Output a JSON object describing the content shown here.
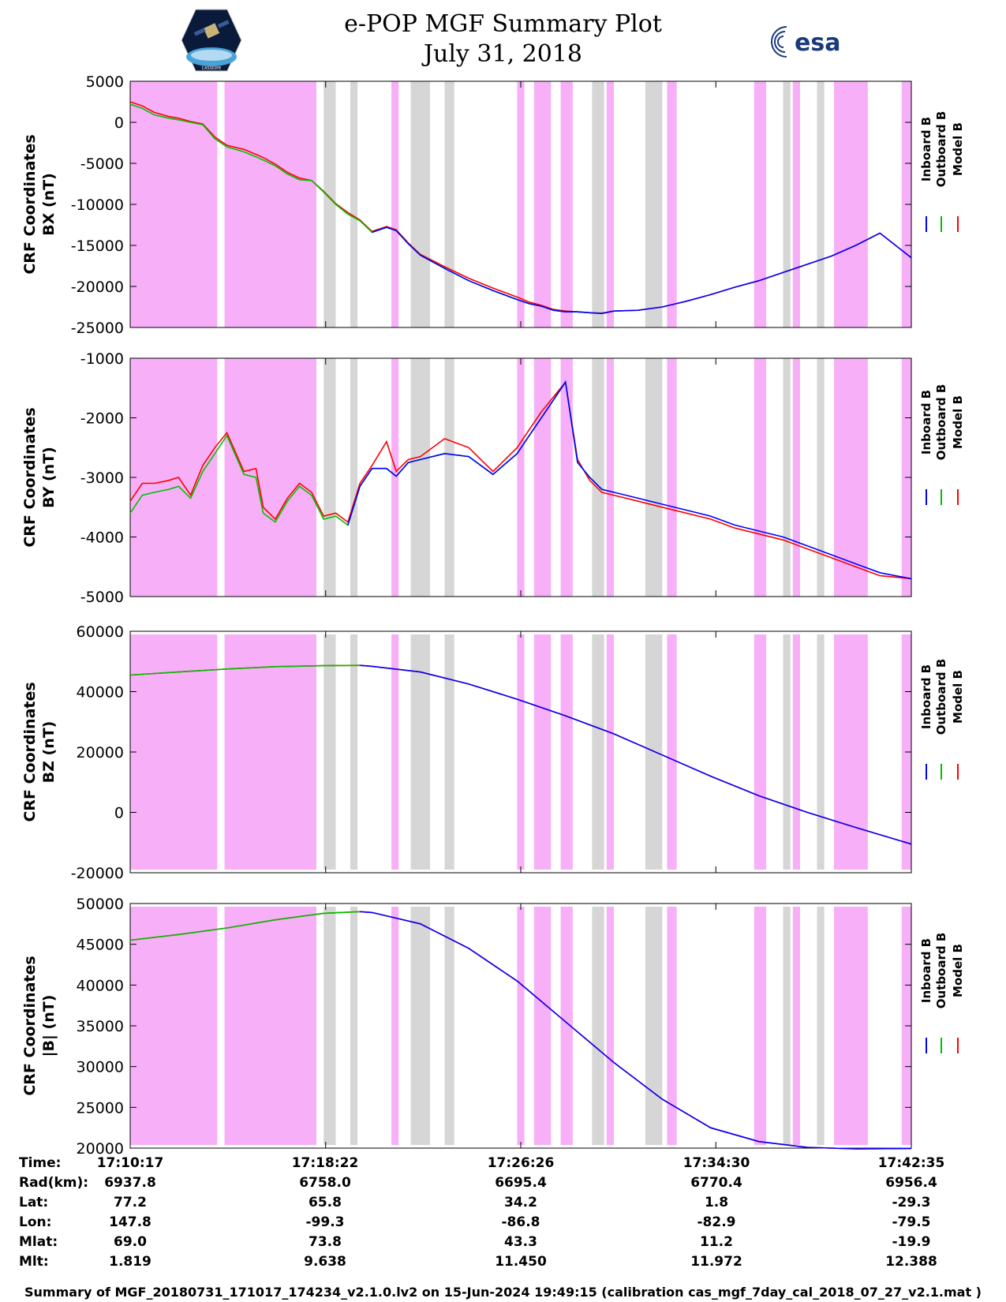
{
  "header": {
    "title": "e-POP MGF Summary Plot",
    "date": "July 31, 2018",
    "left_logo_text": "CASSIOPE",
    "right_logo_text": "esa"
  },
  "legend": {
    "items": [
      {
        "name": "Inboard B",
        "color": "#0000ff"
      },
      {
        "name": "Outboard B",
        "color": "#00c000"
      },
      {
        "name": "Model B",
        "color": "#ff0000"
      }
    ]
  },
  "colors": {
    "pink_band": "#f7b0f7",
    "gray_band": "#d6d6d6",
    "inboard": "#0000ff",
    "outboard": "#00c000",
    "model": "#ff0000"
  },
  "chart_data": [
    {
      "type": "line",
      "ylabel_line1": "CRF Coordinates",
      "ylabel_line2": "BX (nT)",
      "ylim": [
        -25000,
        5000
      ],
      "yticks": [
        "5000",
        "0",
        "-5000",
        "-10000",
        "-15000",
        "-20000",
        "-25000"
      ],
      "ytick_values": [
        5000,
        0,
        -5000,
        -10000,
        -15000,
        -20000,
        -25000
      ],
      "x": [
        0.0,
        0.5,
        1.0,
        1.6,
        2.0,
        2.5,
        3.0,
        3.5,
        4.0,
        4.7,
        5.2,
        5.5,
        6.0,
        6.5,
        7.0,
        7.5,
        8.0,
        8.5,
        9.0,
        9.5,
        10.0,
        10.6,
        11.0,
        11.5,
        12.0,
        13.0,
        14.0,
        15.0,
        16.0,
        16.5,
        17.0,
        17.5,
        18.0,
        18.5,
        19.0,
        19.5,
        20.0,
        21.0,
        22.0,
        23.0,
        24.0,
        25.0,
        26.0,
        27.0,
        28.0,
        29.0,
        30.0,
        31.0,
        32.3
      ],
      "series": [
        {
          "name": "Outboard B",
          "values": [
            2200,
            1700,
            900,
            500,
            300,
            0,
            -300,
            -2000,
            -3000,
            -3600,
            -4200,
            -4600,
            -5300,
            -6300,
            -7000,
            -7100,
            -8500,
            -10000,
            -11200,
            -12000,
            -13400,
            -12800,
            -13200,
            -14800,
            -16200,
            -17800,
            -19300,
            -20500,
            -21600,
            -22100,
            -22400,
            -22900,
            -23100,
            -23100,
            -23200,
            -23300,
            -23000,
            null,
            null,
            null,
            null,
            null,
            null,
            null,
            null,
            null,
            null,
            null,
            null
          ]
        },
        {
          "name": "Inboard B",
          "values": [
            null,
            null,
            null,
            null,
            null,
            null,
            null,
            null,
            null,
            null,
            null,
            null,
            null,
            null,
            null,
            null,
            null,
            null,
            null,
            null,
            -13400,
            -12800,
            -13200,
            -14800,
            -16200,
            -17800,
            -19300,
            -20500,
            -21600,
            -22100,
            -22400,
            -22900,
            -23100,
            -23100,
            -23200,
            -23300,
            -23000,
            -22900,
            -22500,
            -21800,
            -21000,
            -20100,
            -19300,
            -18300,
            -17300,
            -16300,
            -15000,
            -13500,
            -16500
          ]
        },
        {
          "name": "Model B",
          "values": [
            2500,
            2000,
            1200,
            700,
            500,
            100,
            -200,
            -1800,
            -2800,
            -3300,
            -3900,
            -4300,
            -5100,
            -6100,
            -6800,
            -7100,
            -8400,
            -9900,
            -11000,
            -11900,
            -13300,
            -12700,
            -13100,
            -14700,
            -16100,
            -17600,
            -19000,
            -20200,
            -21300,
            -21900,
            -22300,
            -22800,
            -23000,
            -23100,
            -23200,
            -23250,
            -23000,
            -22900,
            -22500,
            -21800,
            -21000,
            -20100,
            -19300,
            -18300,
            -17300,
            -16300,
            -15000,
            -13500,
            -16500
          ]
        }
      ]
    },
    {
      "type": "line",
      "ylabel_line1": "CRF Coordinates",
      "ylabel_line2": "BY (nT)",
      "ylim": [
        -5000,
        -1000
      ],
      "yticks": [
        "-1000",
        "-2000",
        "-3000",
        "-4000",
        "-5000"
      ],
      "ytick_values": [
        -1000,
        -2000,
        -3000,
        -4000,
        -5000
      ],
      "x": [
        0.0,
        0.5,
        1.0,
        1.6,
        2.0,
        2.5,
        3.0,
        3.5,
        4.0,
        4.7,
        5.2,
        5.5,
        6.0,
        6.5,
        7.0,
        7.5,
        8.0,
        8.5,
        9.0,
        9.5,
        10.0,
        10.6,
        11.0,
        11.5,
        12.0,
        13.0,
        14.0,
        15.0,
        16.0,
        16.5,
        17.0,
        17.5,
        18.0,
        18.5,
        19.0,
        19.5,
        20.0,
        21.0,
        22.0,
        23.0,
        24.0,
        25.0,
        26.0,
        27.0,
        28.0,
        29.0,
        30.0,
        31.0,
        32.3
      ],
      "series": [
        {
          "name": "Outboard B",
          "values": [
            -3600,
            -3300,
            -3250,
            -3200,
            -3150,
            -3350,
            -2900,
            -2600,
            -2300,
            -2950,
            -3000,
            -3600,
            -3750,
            -3400,
            -3150,
            -3300,
            -3700,
            -3650,
            -3800,
            -3150,
            -2850,
            -2850,
            -2980,
            -2750,
            -2700,
            -2600,
            -2650,
            -2950,
            -2600,
            -2300,
            -2000,
            -1700,
            -1400,
            -2750,
            -3000,
            -3200,
            -3250,
            null,
            null,
            null,
            null,
            null,
            null,
            null,
            null,
            null,
            null,
            null,
            null
          ]
        },
        {
          "name": "Inboard B",
          "values": [
            null,
            null,
            null,
            null,
            null,
            null,
            null,
            null,
            null,
            null,
            null,
            null,
            null,
            null,
            null,
            null,
            null,
            null,
            -3800,
            -3150,
            -2850,
            -2850,
            -2980,
            -2750,
            -2700,
            -2600,
            -2650,
            -2950,
            -2600,
            -2300,
            -2000,
            -1700,
            -1400,
            -2750,
            -3000,
            -3200,
            -3250,
            -3350,
            -3450,
            -3550,
            -3650,
            -3800,
            -3900,
            -4000,
            -4150,
            -4300,
            -4450,
            -4600,
            -4700
          ]
        },
        {
          "name": "Model B",
          "values": [
            -3400,
            -3100,
            -3100,
            -3050,
            -3000,
            -3300,
            -2800,
            -2500,
            -2250,
            -2900,
            -2850,
            -3500,
            -3700,
            -3350,
            -3100,
            -3250,
            -3650,
            -3600,
            -3750,
            -3100,
            -2800,
            -2400,
            -2900,
            -2700,
            -2650,
            -2350,
            -2500,
            -2900,
            -2500,
            -2200,
            -1900,
            -1650,
            -1400,
            -2700,
            -3050,
            -3250,
            -3300,
            -3400,
            -3500,
            -3600,
            -3700,
            -3850,
            -3950,
            -4050,
            -4200,
            -4350,
            -4500,
            -4650,
            -4700
          ]
        }
      ]
    },
    {
      "type": "line",
      "ylabel_line1": "CRF Coordinates",
      "ylabel_line2": "BZ (nT)",
      "ylim": [
        -20000,
        60000
      ],
      "yticks": [
        "60000",
        "40000",
        "20000",
        "0",
        "-20000"
      ],
      "ytick_values": [
        60000,
        40000,
        20000,
        0,
        -20000
      ],
      "x": [
        0.0,
        2.0,
        4.0,
        6.0,
        8.0,
        9.5,
        10.0,
        12.0,
        14.0,
        16.0,
        18.0,
        20.0,
        22.0,
        24.0,
        26.0,
        28.0,
        30.0,
        32.3
      ],
      "series": [
        {
          "name": "Outboard B",
          "values": [
            45500,
            46500,
            47500,
            48300,
            48600,
            48700,
            null,
            null,
            null,
            null,
            null,
            null,
            null,
            null,
            null,
            null,
            null,
            null
          ]
        },
        {
          "name": "Inboard B",
          "values": [
            null,
            null,
            null,
            null,
            null,
            48700,
            48400,
            46500,
            42500,
            37500,
            32000,
            26000,
            19000,
            12000,
            5500,
            0,
            -5000,
            -10500
          ]
        },
        {
          "name": "Model B",
          "values": [
            45500,
            46500,
            47500,
            48300,
            48600,
            48700,
            48400,
            46500,
            42500,
            37500,
            32000,
            26000,
            19000,
            12000,
            5500,
            0,
            -5000,
            -10500
          ]
        }
      ]
    },
    {
      "type": "line",
      "ylabel_line1": "CRF Coordinates",
      "ylabel_line2": "|B| (nT)",
      "ylim": [
        20000,
        50000
      ],
      "yticks": [
        "50000",
        "45000",
        "40000",
        "35000",
        "30000",
        "25000",
        "20000"
      ],
      "ytick_values": [
        50000,
        45000,
        40000,
        35000,
        30000,
        25000,
        20000
      ],
      "x": [
        0.0,
        2.0,
        4.0,
        6.0,
        8.0,
        9.5,
        10.0,
        12.0,
        14.0,
        16.0,
        18.0,
        20.0,
        22.0,
        24.0,
        26.0,
        28.0,
        30.0,
        32.3
      ],
      "series": [
        {
          "name": "Outboard B",
          "values": [
            45500,
            46200,
            47000,
            48000,
            48800,
            49000,
            null,
            null,
            null,
            null,
            null,
            null,
            null,
            null,
            null,
            null,
            null,
            null
          ]
        },
        {
          "name": "Inboard B",
          "values": [
            null,
            null,
            null,
            null,
            null,
            49000,
            48900,
            47500,
            44500,
            40500,
            35500,
            30500,
            26000,
            22500,
            20800,
            20100,
            19900,
            19950
          ]
        },
        {
          "name": "Model B",
          "values": [
            45500,
            46200,
            47000,
            48000,
            48800,
            49000,
            48900,
            47500,
            44500,
            40500,
            35500,
            30500,
            26000,
            22500,
            20800,
            20100,
            19900,
            19950
          ]
        }
      ]
    }
  ],
  "x_axis": {
    "range_minutes": [
      0,
      32.3
    ],
    "tick_minutes": [
      0,
      8.083,
      16.15,
      24.217,
      32.3
    ]
  },
  "bands": {
    "pink_minutes": [
      [
        0,
        3.6
      ],
      [
        3.9,
        7.7
      ],
      [
        10.8,
        11.1
      ],
      [
        16.0,
        16.3
      ],
      [
        16.7,
        17.4
      ],
      [
        17.8,
        18.3
      ],
      [
        19.7,
        20.0
      ],
      [
        22.2,
        22.6
      ],
      [
        25.8,
        26.3
      ],
      [
        27.4,
        27.7
      ],
      [
        29.1,
        30.5
      ],
      [
        31.9,
        32.3
      ]
    ],
    "gray_minutes": [
      [
        8.0,
        8.5
      ],
      [
        9.1,
        9.4
      ],
      [
        11.6,
        12.4
      ],
      [
        13.0,
        13.4
      ],
      [
        19.1,
        19.6
      ],
      [
        21.3,
        22.0
      ],
      [
        27.0,
        27.3
      ],
      [
        28.4,
        28.7
      ]
    ]
  },
  "ephemeris": {
    "labels": [
      "Time:",
      "Rad(km):",
      "Lat:",
      "Lon:",
      "Mlat:",
      "Mlt:"
    ],
    "columns": [
      {
        "time": "17:10:17",
        "rad": "6937.8",
        "lat": "77.2",
        "lon": "147.8",
        "mlat": "69.0",
        "mlt": "1.819"
      },
      {
        "time": "17:18:22",
        "rad": "6758.0",
        "lat": "65.8",
        "lon": "-99.3",
        "mlat": "73.8",
        "mlt": "9.638"
      },
      {
        "time": "17:26:26",
        "rad": "6695.4",
        "lat": "34.2",
        "lon": "-86.8",
        "mlat": "43.3",
        "mlt": "11.450"
      },
      {
        "time": "17:34:30",
        "rad": "6770.4",
        "lat": "1.8",
        "lon": "-82.9",
        "mlat": "11.2",
        "mlt": "11.972"
      },
      {
        "time": "17:42:35",
        "rad": "6956.4",
        "lat": "-29.3",
        "lon": "-79.5",
        "mlat": "-19.9",
        "mlt": "12.388"
      }
    ]
  },
  "footer": {
    "text": "Summary of MGF_20180731_171017_174234_v2.1.0.lv2 on 15-Jun-2024 19:49:15 (calibration cas_mgf_7day_cal_2018_07_27_v2.1.mat )"
  }
}
